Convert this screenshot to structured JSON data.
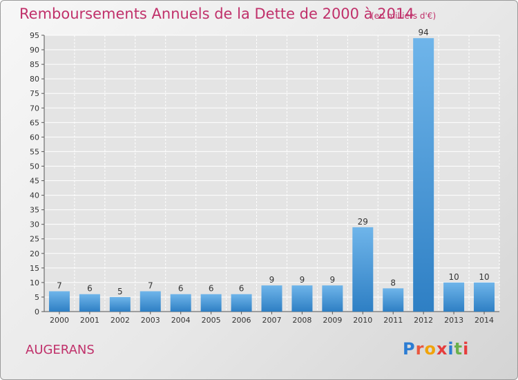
{
  "header": {
    "title": "Remboursements Annuels de la Dette de 2000 à 2014",
    "unit": "(en milliers d'€)"
  },
  "footer": {
    "city": "AUGERANS",
    "logo_letters": [
      "P",
      "r",
      "o",
      "x",
      "i",
      "t",
      "i"
    ]
  },
  "colors": {
    "title": "#c0306a",
    "bar_light": "#6fb5ea",
    "bar_dark": "#2e7fc4",
    "grid": "#ffffff",
    "logo": [
      "#2b7cd3",
      "#e9573f",
      "#f0a30a",
      "#e63c3c",
      "#2b7cd3",
      "#6ab04c",
      "#e63c3c"
    ]
  },
  "chart_data": {
    "type": "bar",
    "title": "Remboursements Annuels de la Dette de 2000 à 2014",
    "categories": [
      "2000",
      "2001",
      "2002",
      "2003",
      "2004",
      "2005",
      "2006",
      "2007",
      "2008",
      "2009",
      "2010",
      "2011",
      "2012",
      "2013",
      "2014"
    ],
    "values": [
      7,
      6,
      5,
      7,
      6,
      6,
      6,
      9,
      9,
      9,
      29,
      8,
      94,
      10,
      10
    ],
    "ylim": [
      0,
      95
    ],
    "ytick_step": 5,
    "grid": true
  }
}
